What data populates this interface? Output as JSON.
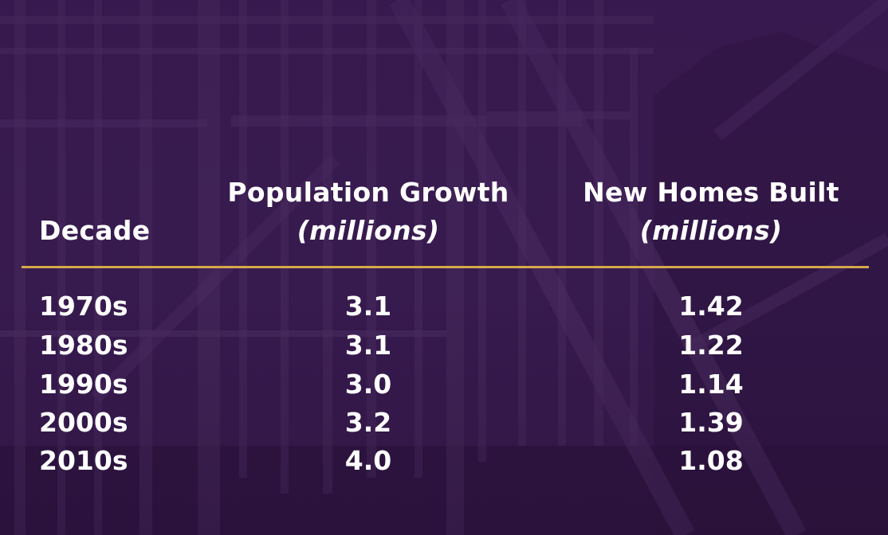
{
  "chart_data": {
    "type": "table",
    "columns": [
      {
        "key": "decade",
        "label": "Decade",
        "unit": ""
      },
      {
        "key": "population_growth",
        "label": "Population Growth",
        "unit": "(millions)"
      },
      {
        "key": "new_homes_built",
        "label": "New Homes Built",
        "unit": "(millions)"
      }
    ],
    "rows": [
      {
        "decade": "1970s",
        "population_growth": "3.1",
        "new_homes_built": "1.42"
      },
      {
        "decade": "1980s",
        "population_growth": "3.1",
        "new_homes_built": "1.22"
      },
      {
        "decade": "1990s",
        "population_growth": "3.0",
        "new_homes_built": "1.14"
      },
      {
        "decade": "2000s",
        "population_growth": "3.2",
        "new_homes_built": "1.39"
      },
      {
        "decade": "2010s",
        "population_growth": "4.0",
        "new_homes_built": "1.08"
      }
    ]
  },
  "colors": {
    "background": "#3a1c4f",
    "text": "#ffffff",
    "rule": "#d4a84b"
  }
}
